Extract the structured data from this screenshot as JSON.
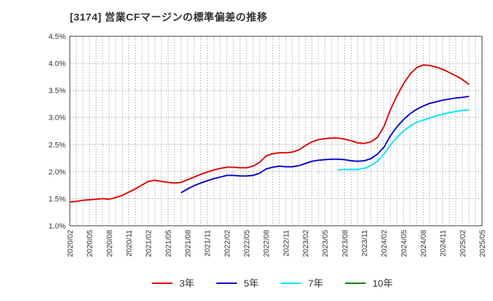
{
  "chart_data": {
    "type": "line",
    "title": "[3174]  営業CFマージンの標準偏差の推移",
    "xlabel": "",
    "ylabel": "",
    "ylim": [
      1.0,
      4.5
    ],
    "xlim": [
      "2020-02",
      "2025-05"
    ],
    "grid": true,
    "legend_position": "bottom",
    "x_ticks": [
      "2020/02",
      "2020/05",
      "2020/08",
      "2020/11",
      "2021/02",
      "2021/05",
      "2021/08",
      "2021/11",
      "2022/02",
      "2022/05",
      "2022/08",
      "2022/11",
      "2023/02",
      "2023/05",
      "2023/08",
      "2023/11",
      "2024/02",
      "2024/05",
      "2024/08",
      "2024/11",
      "2025/02",
      "2025/05"
    ],
    "y_ticks": [
      "1.0%",
      "1.5%",
      "2.0%",
      "2.5%",
      "3.0%",
      "3.5%",
      "4.0%",
      "4.5%"
    ],
    "series": [
      {
        "name": "3年",
        "color": "#dd0000",
        "points": [
          [
            "2020-02",
            1.44
          ],
          [
            "2020-03",
            1.45
          ],
          [
            "2020-04",
            1.47
          ],
          [
            "2020-05",
            1.48
          ],
          [
            "2020-06",
            1.49
          ],
          [
            "2020-07",
            1.5
          ],
          [
            "2020-08",
            1.49
          ],
          [
            "2020-09",
            1.52
          ],
          [
            "2020-10",
            1.56
          ],
          [
            "2020-11",
            1.62
          ],
          [
            "2020-12",
            1.68
          ],
          [
            "2021-01",
            1.75
          ],
          [
            "2021-02",
            1.82
          ],
          [
            "2021-03",
            1.84
          ],
          [
            "2021-04",
            1.82
          ],
          [
            "2021-05",
            1.8
          ],
          [
            "2021-06",
            1.79
          ],
          [
            "2021-07",
            1.8
          ],
          [
            "2021-08",
            1.85
          ],
          [
            "2021-09",
            1.9
          ],
          [
            "2021-10",
            1.95
          ],
          [
            "2021-11",
            1.99
          ],
          [
            "2021-12",
            2.03
          ],
          [
            "2022-01",
            2.06
          ],
          [
            "2022-02",
            2.08
          ],
          [
            "2022-03",
            2.08
          ],
          [
            "2022-04",
            2.07
          ],
          [
            "2022-05",
            2.07
          ],
          [
            "2022-06",
            2.1
          ],
          [
            "2022-07",
            2.17
          ],
          [
            "2022-08",
            2.29
          ],
          [
            "2022-09",
            2.33
          ],
          [
            "2022-10",
            2.35
          ],
          [
            "2022-11",
            2.35
          ],
          [
            "2022-12",
            2.36
          ],
          [
            "2023-01",
            2.4
          ],
          [
            "2023-02",
            2.48
          ],
          [
            "2023-03",
            2.55
          ],
          [
            "2023-04",
            2.59
          ],
          [
            "2023-05",
            2.61
          ],
          [
            "2023-06",
            2.62
          ],
          [
            "2023-07",
            2.62
          ],
          [
            "2023-08",
            2.6
          ],
          [
            "2023-09",
            2.57
          ],
          [
            "2023-10",
            2.53
          ],
          [
            "2023-11",
            2.52
          ],
          [
            "2023-12",
            2.55
          ],
          [
            "2024-01",
            2.63
          ],
          [
            "2024-02",
            2.83
          ],
          [
            "2024-03",
            3.14
          ],
          [
            "2024-04",
            3.4
          ],
          [
            "2024-05",
            3.62
          ],
          [
            "2024-06",
            3.8
          ],
          [
            "2024-07",
            3.92
          ],
          [
            "2024-08",
            3.97
          ],
          [
            "2024-09",
            3.96
          ],
          [
            "2024-10",
            3.93
          ],
          [
            "2024-11",
            3.89
          ],
          [
            "2024-12",
            3.83
          ],
          [
            "2025-01",
            3.77
          ],
          [
            "2025-02",
            3.7
          ],
          [
            "2025-03",
            3.61
          ]
        ]
      },
      {
        "name": "5年",
        "color": "#0000cc",
        "points": [
          [
            "2021-07",
            1.61
          ],
          [
            "2021-08",
            1.68
          ],
          [
            "2021-09",
            1.74
          ],
          [
            "2021-10",
            1.79
          ],
          [
            "2021-11",
            1.83
          ],
          [
            "2021-12",
            1.87
          ],
          [
            "2022-01",
            1.9
          ],
          [
            "2022-02",
            1.93
          ],
          [
            "2022-03",
            1.93
          ],
          [
            "2022-04",
            1.92
          ],
          [
            "2022-05",
            1.92
          ],
          [
            "2022-06",
            1.93
          ],
          [
            "2022-07",
            1.97
          ],
          [
            "2022-08",
            2.05
          ],
          [
            "2022-09",
            2.08
          ],
          [
            "2022-10",
            2.1
          ],
          [
            "2022-11",
            2.09
          ],
          [
            "2022-12",
            2.09
          ],
          [
            "2023-01",
            2.11
          ],
          [
            "2023-02",
            2.15
          ],
          [
            "2023-03",
            2.19
          ],
          [
            "2023-04",
            2.21
          ],
          [
            "2023-05",
            2.22
          ],
          [
            "2023-06",
            2.23
          ],
          [
            "2023-07",
            2.23
          ],
          [
            "2023-08",
            2.22
          ],
          [
            "2023-09",
            2.2
          ],
          [
            "2023-10",
            2.19
          ],
          [
            "2023-11",
            2.2
          ],
          [
            "2023-12",
            2.24
          ],
          [
            "2024-01",
            2.32
          ],
          [
            "2024-02",
            2.45
          ],
          [
            "2024-03",
            2.66
          ],
          [
            "2024-04",
            2.83
          ],
          [
            "2024-05",
            2.96
          ],
          [
            "2024-06",
            3.07
          ],
          [
            "2024-07",
            3.15
          ],
          [
            "2024-08",
            3.21
          ],
          [
            "2024-09",
            3.26
          ],
          [
            "2024-10",
            3.29
          ],
          [
            "2024-11",
            3.32
          ],
          [
            "2024-12",
            3.34
          ],
          [
            "2025-01",
            3.36
          ],
          [
            "2025-02",
            3.37
          ],
          [
            "2025-03",
            3.39
          ]
        ]
      },
      {
        "name": "7年",
        "color": "#00e5ff",
        "points": [
          [
            "2023-07",
            2.03
          ],
          [
            "2023-08",
            2.04
          ],
          [
            "2023-09",
            2.04
          ],
          [
            "2023-10",
            2.04
          ],
          [
            "2023-11",
            2.06
          ],
          [
            "2023-12",
            2.11
          ],
          [
            "2024-01",
            2.19
          ],
          [
            "2024-02",
            2.32
          ],
          [
            "2024-03",
            2.49
          ],
          [
            "2024-04",
            2.63
          ],
          [
            "2024-05",
            2.75
          ],
          [
            "2024-06",
            2.84
          ],
          [
            "2024-07",
            2.91
          ],
          [
            "2024-08",
            2.95
          ],
          [
            "2024-09",
            2.99
          ],
          [
            "2024-10",
            3.03
          ],
          [
            "2024-11",
            3.06
          ],
          [
            "2024-12",
            3.09
          ],
          [
            "2025-01",
            3.11
          ],
          [
            "2025-02",
            3.13
          ],
          [
            "2025-03",
            3.14
          ]
        ]
      },
      {
        "name": "10年",
        "color": "#008000",
        "points": []
      }
    ]
  }
}
